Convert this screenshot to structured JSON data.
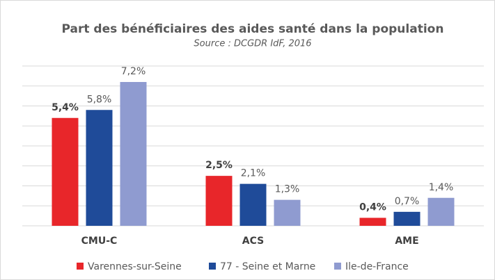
{
  "chart_data": {
    "type": "bar",
    "title": "Part des bénéficiaires des aides santé dans la population",
    "subtitle": "Source : DCGDR IdF, 2016",
    "categories": [
      "CMU-C",
      "ACS",
      "AME"
    ],
    "series": [
      {
        "name": "Varennes-sur-Seine",
        "color": "#e8262a",
        "values": [
          5.4,
          2.5,
          0.4
        ],
        "value_labels": [
          "5,4%",
          "2,5%",
          "0,4%"
        ]
      },
      {
        "name": "77 - Seine et Marne",
        "color": "#1f4b99",
        "values": [
          5.8,
          2.1,
          0.7
        ],
        "value_labels": [
          "5,8%",
          "2,1%",
          "0,7%"
        ]
      },
      {
        "name": "Ile-de-France",
        "color": "#8f9bd0",
        "values": [
          7.2,
          1.3,
          1.4
        ],
        "value_labels": [
          "7,2%",
          "1,3%",
          "1,4%"
        ]
      }
    ],
    "ylim": [
      0,
      8
    ],
    "yticks": [
      0,
      1,
      2,
      3,
      4,
      5,
      6,
      7,
      8
    ],
    "grid": true,
    "legend": "bottom"
  }
}
